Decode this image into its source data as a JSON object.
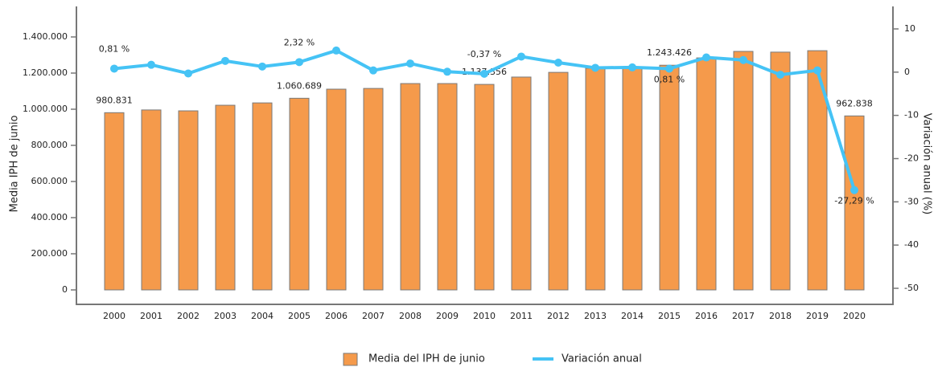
{
  "chart_data": {
    "type": "bar_line",
    "categories": [
      "2000",
      "2001",
      "2002",
      "2003",
      "2004",
      "2005",
      "2006",
      "2007",
      "2008",
      "2009",
      "2010",
      "2011",
      "2012",
      "2013",
      "2014",
      "2015",
      "2016",
      "2017",
      "2018",
      "2019",
      "2020"
    ],
    "series": [
      {
        "name": "Media del IPH de junio",
        "type": "bar",
        "color": "#f59a4b",
        "values": [
          980831,
          996000,
          991000,
          1022000,
          1035000,
          1060689,
          1111000,
          1115000,
          1142000,
          1142000,
          1137356,
          1178000,
          1204000,
          1227000,
          1227000,
          1243426,
          1284000,
          1320000,
          1316000,
          1324000,
          962838
        ],
        "value_labels": [
          "980.831",
          null,
          null,
          null,
          null,
          "1.060.689",
          null,
          null,
          null,
          null,
          "1.137.356",
          null,
          null,
          null,
          null,
          "1.243.426",
          null,
          null,
          null,
          null,
          "962.838"
        ]
      },
      {
        "name": "Variación anual",
        "type": "line",
        "axis": "y2",
        "color": "#45c3f5",
        "values": [
          0.81,
          1.7,
          -0.3,
          2.6,
          1.3,
          2.32,
          5.0,
          0.4,
          2.0,
          0.1,
          -0.37,
          3.6,
          2.2,
          1.0,
          1.1,
          0.81,
          3.4,
          2.8,
          -0.6,
          0.4,
          -27.29
        ],
        "value_labels": [
          "0,81 %",
          null,
          null,
          null,
          null,
          "2,32 %",
          null,
          null,
          null,
          null,
          "-0,37 %",
          null,
          null,
          null,
          null,
          "0,81 %",
          null,
          null,
          null,
          null,
          "-27,29 %"
        ]
      }
    ],
    "ylabel": "Media IPH de junio",
    "y2label": "Variación anual (%)",
    "ylim": [
      0,
      1400000
    ],
    "yticks": [
      0,
      {
        "value": 200000,
        "label": "200.000"
      },
      {
        "value": 400000,
        "label": "400.000"
      },
      {
        "value": 600000,
        "label": "600.000"
      },
      {
        "value": 800000,
        "label": "800.000"
      },
      {
        "value": 1000000,
        "label": "1.000.000"
      },
      {
        "value": 1200000,
        "label": "1.200.000"
      },
      {
        "value": 1400000,
        "label": "1.400.000"
      }
    ],
    "y2lim": [
      -50,
      10
    ],
    "y2ticks": [
      -50,
      -40,
      -30,
      -20,
      -10,
      0,
      10
    ],
    "legend": "bottom"
  }
}
